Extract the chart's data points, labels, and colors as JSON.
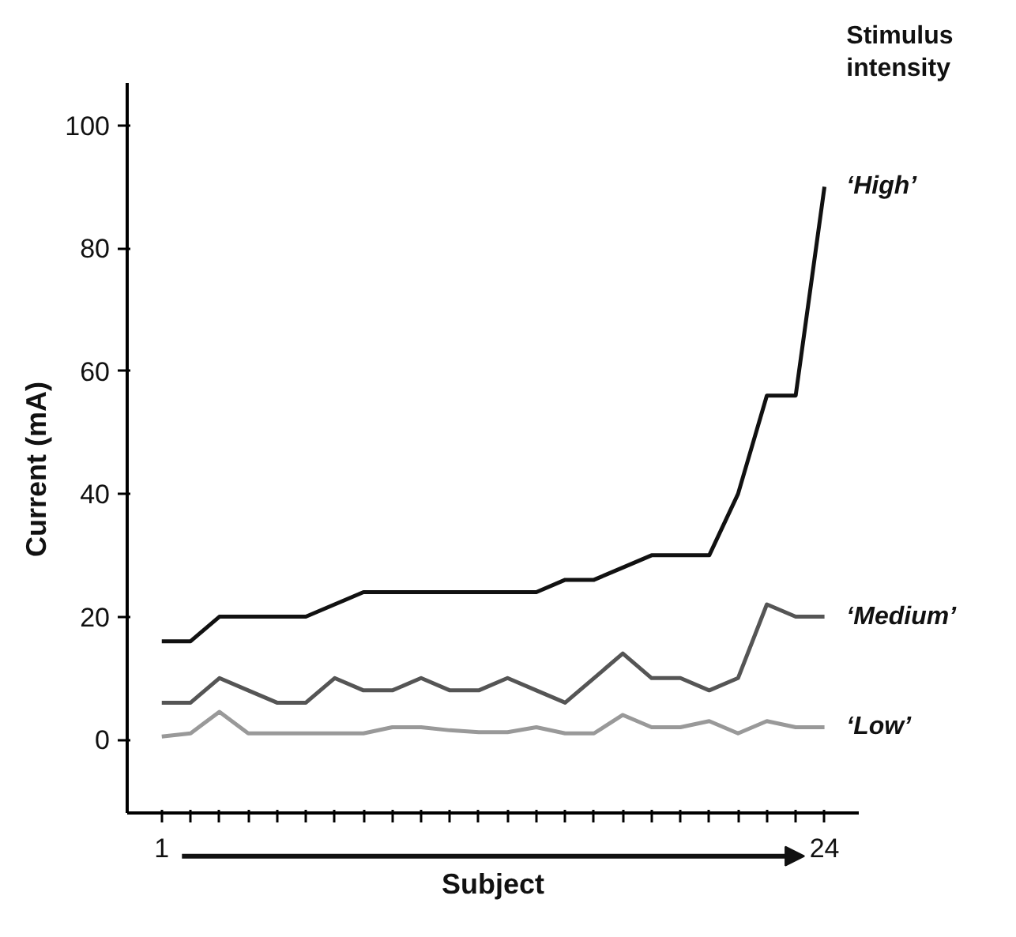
{
  "chart_data": {
    "type": "line",
    "xlabel": "Subject",
    "ylabel": "Current (mA)",
    "legend_title": "Stimulus intensity",
    "x": [
      1,
      2,
      3,
      4,
      5,
      6,
      7,
      8,
      9,
      10,
      11,
      12,
      13,
      14,
      15,
      16,
      17,
      18,
      19,
      20,
      21,
      22,
      23,
      24
    ],
    "xlim": [
      -0.2,
      25.2
    ],
    "ylim": [
      -12,
      107
    ],
    "xticks": [
      {
        "value": 1,
        "label": "1"
      },
      {
        "value": 2,
        "label": null
      },
      {
        "value": 3,
        "label": null
      },
      {
        "value": 4,
        "label": null
      },
      {
        "value": 5,
        "label": null
      },
      {
        "value": 6,
        "label": null
      },
      {
        "value": 7,
        "label": null
      },
      {
        "value": 8,
        "label": null
      },
      {
        "value": 9,
        "label": null
      },
      {
        "value": 10,
        "label": null
      },
      {
        "value": 11,
        "label": null
      },
      {
        "value": 12,
        "label": null
      },
      {
        "value": 13,
        "label": null
      },
      {
        "value": 14,
        "label": null
      },
      {
        "value": 15,
        "label": null
      },
      {
        "value": 16,
        "label": null
      },
      {
        "value": 17,
        "label": null
      },
      {
        "value": 18,
        "label": null
      },
      {
        "value": 19,
        "label": null
      },
      {
        "value": 20,
        "label": null
      },
      {
        "value": 21,
        "label": null
      },
      {
        "value": 22,
        "label": null
      },
      {
        "value": 23,
        "label": null
      },
      {
        "value": 24,
        "label": "24"
      }
    ],
    "yticks": [
      0,
      20,
      40,
      60,
      80,
      100
    ],
    "grid": false,
    "marker": "none",
    "line_style": "solid",
    "series": [
      {
        "name": "‘High’",
        "color": "#111111",
        "values": [
          16,
          16,
          20,
          20,
          20,
          20,
          22,
          24,
          24,
          24,
          24,
          24,
          24,
          24,
          26,
          26,
          28,
          30,
          30,
          30,
          40,
          56,
          56,
          90
        ]
      },
      {
        "name": "‘Medium’",
        "color": "#555555",
        "values": [
          6,
          6,
          10,
          8,
          6,
          6,
          10,
          8,
          8,
          10,
          8,
          8,
          10,
          8,
          6,
          10,
          14,
          10,
          10,
          8,
          10,
          22,
          20,
          20
        ]
      },
      {
        "name": "‘Low’",
        "color": "#999999",
        "values": [
          0.5,
          1,
          4.5,
          1,
          1,
          1,
          1,
          1,
          2,
          2,
          1.5,
          1.2,
          1.2,
          2,
          1,
          1,
          4,
          2,
          2,
          3,
          1,
          3,
          2,
          2
        ]
      }
    ]
  }
}
